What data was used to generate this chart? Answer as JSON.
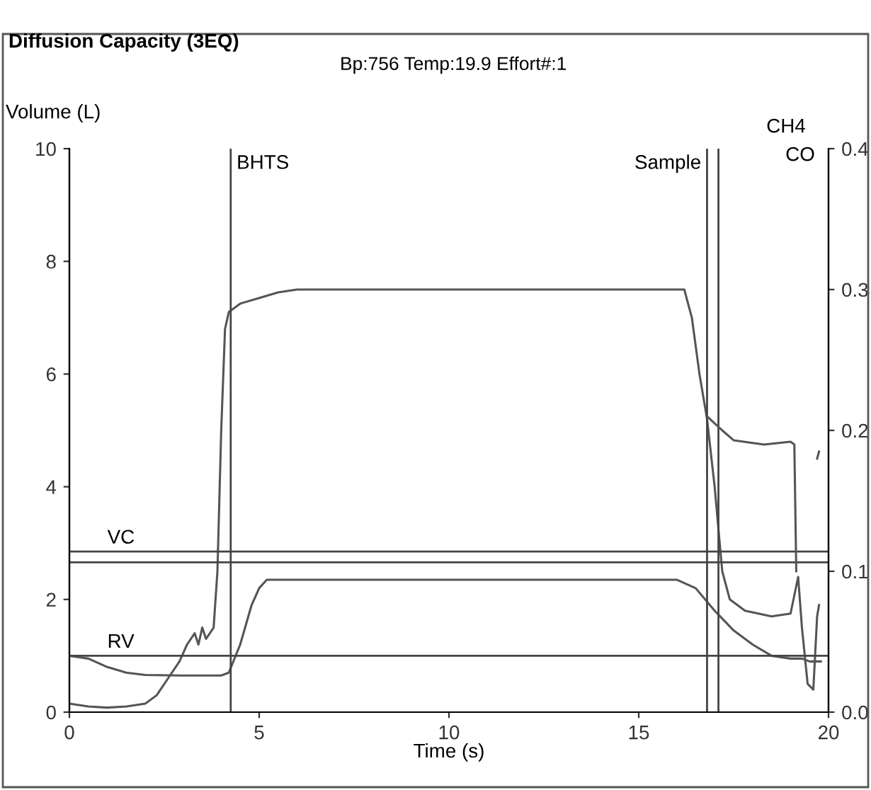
{
  "chart_data": {
    "type": "line",
    "title": "Diffusion Capacity (3EQ)",
    "subtitle": "Bp:756 Temp:19.9 Effort#:1",
    "ylabel": "Volume (L)",
    "xlabel": "Time (s)",
    "xlim": [
      0,
      20
    ],
    "xticks": [
      0,
      5,
      10,
      15,
      20
    ],
    "ylim": [
      0,
      10
    ],
    "yticks": [
      0,
      2,
      4,
      6,
      8,
      10
    ],
    "y2lim": [
      0,
      0.4
    ],
    "y2ticks": [
      {
        "value": 0,
        "label": "0.0"
      },
      {
        "value": 0.1,
        "label": "0.1"
      },
      {
        "value": 0.2,
        "label": "0.2"
      },
      {
        "value": 0.3,
        "label": "0.3"
      },
      {
        "value": 0.4,
        "label": "0.4"
      }
    ],
    "grid": false,
    "legend": false,
    "marker": "none",
    "line_style": "solid",
    "series": [
      {
        "color": "#555555",
        "x": [
          0,
          0.5,
          1,
          1.5,
          2,
          2.3,
          2.6,
          2.9,
          3.1,
          3.3,
          3.4,
          3.5,
          3.6,
          3.8,
          3.9,
          4.0,
          4.1,
          4.2,
          4.5,
          5,
          5.5,
          6,
          16.2,
          16.4,
          16.6,
          16.8,
          17.0,
          17.2,
          17.4,
          17.8,
          18.5,
          19.0,
          19.2,
          19.3,
          19.45,
          19.6,
          19.7,
          19.75
        ],
        "values": [
          0.15,
          0.1,
          0.08,
          0.1,
          0.15,
          0.3,
          0.6,
          0.9,
          1.2,
          1.4,
          1.2,
          1.5,
          1.3,
          1.5,
          2.5,
          5.0,
          6.8,
          7.1,
          7.25,
          7.35,
          7.45,
          7.5,
          7.5,
          7.0,
          6.0,
          5.2,
          4.0,
          2.5,
          2.0,
          1.8,
          1.7,
          1.75,
          2.4,
          1.5,
          0.5,
          0.4,
          1.7,
          1.9
        ]
      },
      {
        "color": "#555555",
        "axis": "y2",
        "x": [
          16.8,
          17.2,
          17.5,
          18.3,
          19.0,
          19.1,
          19.15,
          19.6,
          19.7,
          19.75
        ],
        "values": [
          0.21,
          0.2,
          0.193,
          0.19,
          0.192,
          0.19,
          0.1,
          null,
          0.18,
          0.185
        ]
      },
      {
        "color": "#555555",
        "x": [
          0,
          0.5,
          1,
          1.5,
          2,
          3,
          4.0,
          4.2,
          4.5,
          4.8,
          5.0,
          5.2,
          6,
          16,
          16.5,
          17,
          17.5,
          18,
          18.5,
          19.0,
          19.3,
          19.5,
          19.8
        ],
        "values": [
          1.0,
          0.95,
          0.8,
          0.7,
          0.66,
          0.65,
          0.65,
          0.7,
          1.2,
          1.9,
          2.2,
          2.35,
          2.35,
          2.35,
          2.2,
          1.8,
          1.45,
          1.2,
          1.0,
          0.95,
          0.95,
          0.9,
          0.9
        ]
      }
    ],
    "ref_lines": [
      {
        "axis": "y",
        "value": 2.85,
        "label": "VC",
        "color": "#444444"
      },
      {
        "axis": "y",
        "value": 2.66,
        "label": null,
        "color": "#444444"
      },
      {
        "axis": "y",
        "value": 1.0,
        "label": "RV",
        "color": "#444444"
      },
      {
        "axis": "x",
        "value": 4.25,
        "label": "BHTS",
        "color": "#444444"
      },
      {
        "axis": "x",
        "value": 16.8,
        "label": "Sample",
        "color": "#444444"
      },
      {
        "axis": "x",
        "value": 17.1,
        "label": null,
        "color": "#444444"
      }
    ],
    "annotations": [
      "CH4",
      "CO"
    ]
  }
}
